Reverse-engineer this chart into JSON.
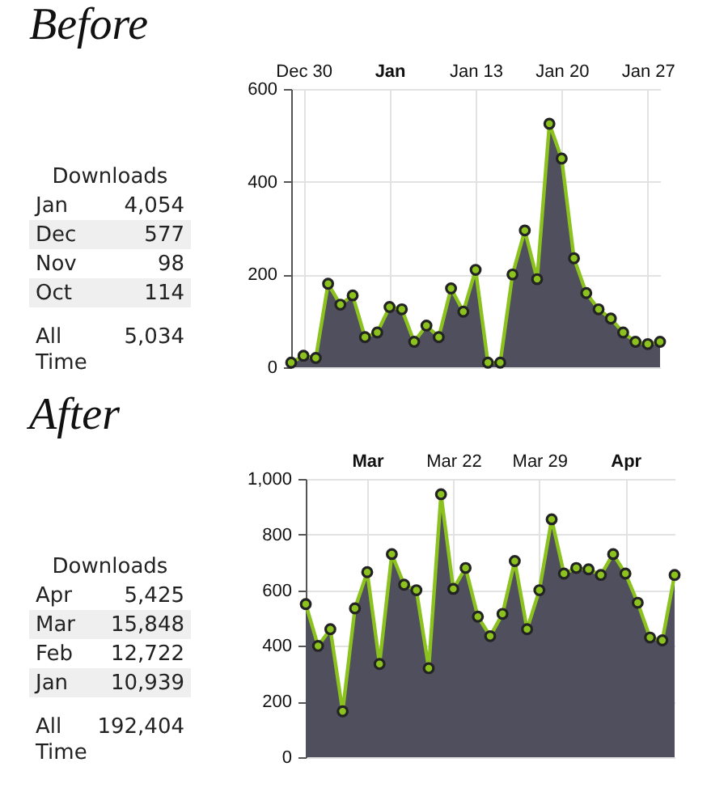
{
  "chart_data": [
    {
      "type": "area",
      "title": "Before",
      "categories": [
        null,
        "Dec 30",
        null,
        null,
        null,
        null,
        null,
        null,
        "Jan",
        null,
        null,
        null,
        null,
        null,
        null,
        "Jan 13",
        null,
        null,
        null,
        null,
        null,
        null,
        "Jan 20",
        null,
        null,
        null,
        null,
        null,
        null,
        "Jan 27",
        null
      ],
      "values": [
        10,
        25,
        20,
        180,
        135,
        155,
        65,
        75,
        130,
        125,
        55,
        90,
        65,
        170,
        120,
        210,
        10,
        10,
        200,
        295,
        190,
        525,
        450,
        235,
        160,
        125,
        105,
        75,
        55,
        50,
        55
      ],
      "color": "#4f4f5e",
      "ylim": [
        0,
        600
      ],
      "yticks": [
        0,
        200,
        400,
        600
      ],
      "grid": true,
      "marker": "circle"
    },
    {
      "type": "other",
      "title": "Downloads",
      "categories": [
        "Jan",
        "Dec",
        "Nov",
        "Oct",
        "All Time"
      ],
      "values": [
        4054,
        577,
        98,
        114,
        5034
      ],
      "value_labels": [
        "4,054",
        "577",
        "98",
        "114",
        "5,034"
      ]
    },
    {
      "type": "area",
      "title": "After",
      "categories": [
        null,
        null,
        null,
        null,
        null,
        "Mar",
        null,
        null,
        null,
        null,
        null,
        null,
        "Mar 22",
        null,
        null,
        null,
        null,
        null,
        null,
        "Mar 29",
        null,
        null,
        null,
        null,
        null,
        null,
        "Apr",
        null,
        null,
        null,
        null
      ],
      "values": [
        550,
        400,
        460,
        165,
        535,
        665,
        335,
        730,
        620,
        600,
        320,
        945,
        605,
        680,
        505,
        435,
        515,
        705,
        460,
        600,
        855,
        660,
        680,
        675,
        655,
        730,
        660,
        555,
        430,
        420,
        655
      ],
      "color": "#4f4f5e",
      "ylim": [
        0,
        1000
      ],
      "yticks": [
        0,
        200,
        400,
        600,
        800,
        {
          "value": 1000,
          "label": "1,000"
        }
      ],
      "grid": true,
      "marker": "circle"
    },
    {
      "type": "other",
      "title": "Downloads",
      "categories": [
        "Apr",
        "Mar",
        "Feb",
        "Jan",
        "All Time"
      ],
      "values": [
        5425,
        15848,
        12722,
        10939,
        192404
      ],
      "value_labels": [
        "5,425",
        "15,848",
        "12,722",
        "10,939",
        "192,404"
      ]
    }
  ]
}
